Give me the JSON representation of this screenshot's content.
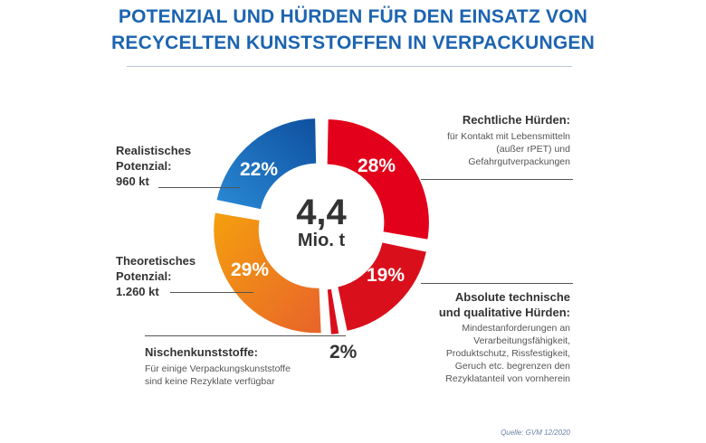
{
  "title_lines": [
    "POTENZIAL UND HÜRDEN FÜR DEN EINSATZ VON",
    "RECYCELTEN KUNSTSTOFFEN IN VERPACKUNGEN"
  ],
  "chart_data": {
    "type": "pie",
    "donut": true,
    "center_value": "4,4",
    "center_unit": "Mio. t",
    "slices": [
      {
        "label": "Rechtliche Hürden:",
        "value": 28,
        "display": "28%",
        "color": "#e2001a",
        "description": "für Kontakt mit Lebensmitteln (außer rPET) und Gefahrgutverpackungen"
      },
      {
        "label": "Absolute technische und qualitative Hürden:",
        "value": 19,
        "display": "19%",
        "color": "#d9101c",
        "description": "Mindestanforderungen an Verarbeitungsfähigkeit, Produktschutz, Rissfestigkeit, Geruch etc. begrenzen den Rezyklatanteil von vornherein"
      },
      {
        "label": "Nischenkunststoffe:",
        "value": 2,
        "display": "2%",
        "color": "#d9101c",
        "description": "Für einige Verpackungskunststoffe sind keine Rezyklate verfügbar"
      },
      {
        "label": "Theoretisches Potenzial:",
        "value": 29,
        "display": "29%",
        "color": "#f08a14",
        "amount": "1.260 kt"
      },
      {
        "label": "Realistisches Potenzial:",
        "value": 22,
        "display": "22%",
        "color": "#1e7cc8",
        "amount": "960 kt"
      }
    ]
  },
  "labels": {
    "legal_title": "Rechtliche Hürden:",
    "legal_desc": [
      "für Kontakt mit Lebensmitteln",
      "(außer rPET) und",
      "Gefahrgutverpackungen"
    ],
    "tech_title": [
      "Absolute technische",
      "und qualitative Hürden:"
    ],
    "tech_desc": [
      "Mindestanforderungen an",
      "Verarbeitungsfähigkeit,",
      "Produktschutz, Rissfestigkeit,",
      "Geruch etc. begrenzen den",
      "Rezyklatanteil von vornherein"
    ],
    "niche_title": "Nischenkunststoffe:",
    "niche_desc": [
      "Für einige Verpackungskunststoffe",
      "sind keine Rezyklate verfügbar"
    ],
    "real_title": [
      "Realistisches",
      "Potenzial:",
      "960 kt"
    ],
    "theo_title": [
      "Theoretisches",
      "Potenzial:",
      "1.260 kt"
    ]
  },
  "source": "Quelle: GVM 12/2020"
}
